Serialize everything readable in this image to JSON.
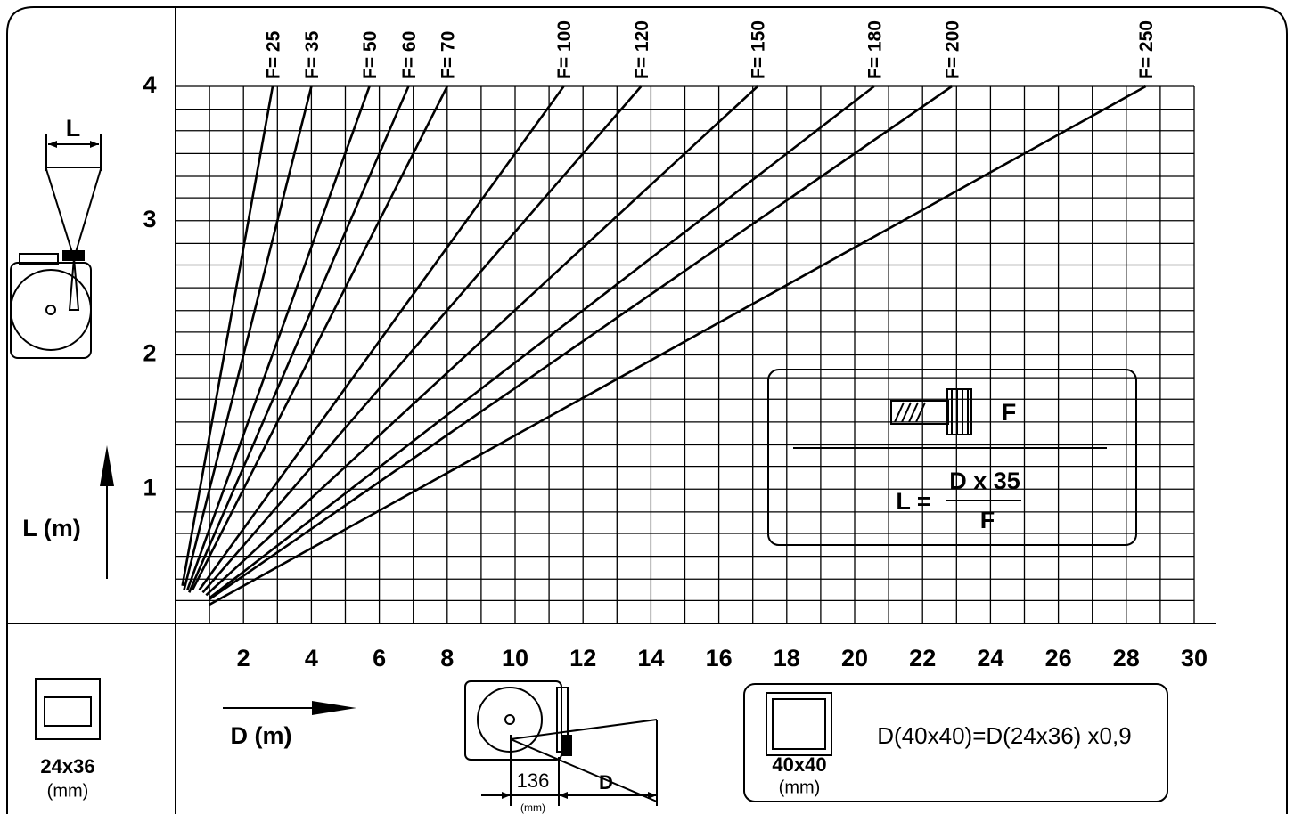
{
  "chart_data": {
    "type": "line",
    "xlabel": "D (m)",
    "ylabel": "L (m)",
    "xlim": [
      0,
      30
    ],
    "ylim": [
      0,
      4
    ],
    "xticks": [
      2,
      4,
      6,
      8,
      10,
      12,
      14,
      16,
      18,
      20,
      22,
      24,
      26,
      28,
      30
    ],
    "yticks": [
      1,
      2,
      3,
      4
    ],
    "xgrid": [
      1,
      2,
      3,
      4,
      5,
      6,
      7,
      8,
      9,
      10,
      11,
      12,
      13,
      14,
      15,
      16,
      17,
      18,
      19,
      20,
      21,
      22,
      23,
      24,
      25,
      26,
      27,
      28,
      29,
      30
    ],
    "ygrid": [
      0.17,
      0.33,
      0.5,
      0.67,
      0.83,
      1,
      1.17,
      1.33,
      1.5,
      1.67,
      1.83,
      2,
      2.17,
      2.33,
      2.5,
      2.67,
      2.83,
      3,
      3.17,
      3.33,
      3.5,
      3.67,
      3.83,
      4
    ],
    "series": [
      {
        "name": "F= 25",
        "color": "#000000",
        "x": [
          0.2,
          2.86
        ],
        "values": [
          0.28,
          4
        ]
      },
      {
        "name": "F= 35",
        "color": "#000000",
        "x": [
          0.25,
          4
        ],
        "values": [
          0.25,
          4
        ]
      },
      {
        "name": "F= 50",
        "color": "#000000",
        "x": [
          0.35,
          5.71
        ],
        "values": [
          0.25,
          4
        ]
      },
      {
        "name": "F= 60",
        "color": "#000000",
        "x": [
          0.4,
          6.86
        ],
        "values": [
          0.23,
          4
        ]
      },
      {
        "name": "F= 70",
        "color": "#000000",
        "x": [
          0.5,
          8
        ],
        "values": [
          0.25,
          4
        ]
      },
      {
        "name": "F= 100",
        "color": "#000000",
        "x": [
          0.7,
          11.43
        ],
        "values": [
          0.25,
          4
        ]
      },
      {
        "name": "F= 120",
        "color": "#000000",
        "x": [
          0.8,
          13.71
        ],
        "values": [
          0.23,
          4
        ]
      },
      {
        "name": "F= 150",
        "color": "#000000",
        "x": [
          0.9,
          17.14
        ],
        "values": [
          0.21,
          4
        ]
      },
      {
        "name": "F= 180",
        "color": "#000000",
        "x": [
          1,
          20.57
        ],
        "values": [
          0.19,
          4
        ]
      },
      {
        "name": "F= 200",
        "color": "#000000",
        "x": [
          1,
          22.86
        ],
        "values": [
          0.18,
          4
        ]
      },
      {
        "name": "F= 250",
        "color": "#000000",
        "x": [
          1,
          28.57
        ],
        "values": [
          0.14,
          4
        ]
      }
    ],
    "formula": {
      "lens_label": "F",
      "lhs": "L =",
      "numerator": "D x 35",
      "denominator": "F"
    }
  },
  "camera_top": {
    "label": "L"
  },
  "format_left": {
    "size": "24x36",
    "unit": "(mm)"
  },
  "camera_bottom": {
    "offset": 136,
    "unit": "(mm)",
    "distance": "D"
  },
  "format_note": {
    "size": "40x40",
    "unit": "(mm)",
    "text": "D(40x40)=D(24x36) x0,9"
  }
}
